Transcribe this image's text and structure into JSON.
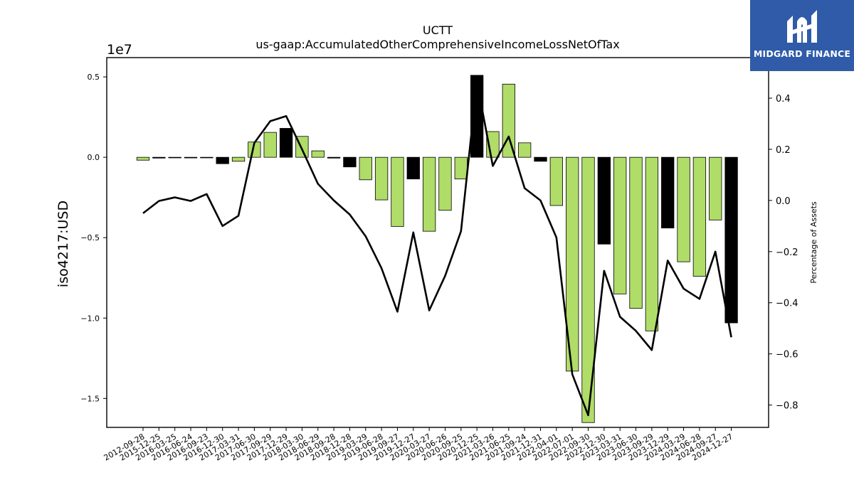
{
  "brand": {
    "name": "MIDGARD FINANCE",
    "color": "#2f5ba8"
  },
  "chart_data": {
    "type": "bar",
    "title": "UCTT",
    "subtitle": "us-gaap:AccumulatedOtherComprehensiveIncomeLossNetOfTax",
    "ylabel": "iso4217:USD",
    "y_multiplier_label": "1e7",
    "y2label": "Percentage of Assets",
    "ylim": [
      -1.68,
      0.62
    ],
    "y2lim": [
      -0.8874,
      0.5586
    ],
    "yticks": [
      0.5,
      0.0,
      -0.5,
      -1.0,
      -1.5
    ],
    "y2ticks": [
      0.4,
      0.2,
      0.0,
      -0.2,
      -0.4,
      -0.6,
      -0.8
    ],
    "colors": {
      "positive_change": "#b0dc68",
      "negative_change": "#000000",
      "line": "#000000"
    },
    "categories": [
      "2012-09-28",
      "2015-12-25",
      "2016-03-25",
      "2016-06-24",
      "2016-09-23",
      "2016-12-30",
      "2017-03-31",
      "2017-06-30",
      "2017-09-29",
      "2017-12-29",
      "2018-03-30",
      "2018-06-29",
      "2018-09-28",
      "2018-12-28",
      "2019-03-29",
      "2019-06-28",
      "2019-09-27",
      "2019-12-27",
      "2020-03-27",
      "2020-06-26",
      "2020-09-25",
      "2020-12-25",
      "2021-03-26",
      "2021-06-25",
      "2021-09-24",
      "2021-12-31",
      "2022-04-01",
      "2022-07-01",
      "2022-09-30",
      "2022-12-30",
      "2023-03-31",
      "2023-06-30",
      "2023-09-29",
      "2023-12-29",
      "2024-03-29",
      "2024-06-28",
      "2024-09-27",
      "2024-12-27"
    ],
    "series": [
      {
        "values": [
          -0.018,
          -0.005,
          -0.002,
          -0.004,
          -0.003,
          -0.04,
          -0.025,
          0.095,
          0.155,
          0.18,
          0.13,
          0.04,
          -0.005,
          -0.06,
          -0.14,
          -0.265,
          -0.43,
          -0.135,
          -0.46,
          -0.33,
          -0.135,
          0.51,
          0.16,
          0.455,
          0.09,
          -0.025,
          -0.3,
          -1.33,
          -1.65,
          -0.54,
          -0.85,
          -0.94,
          -1.08,
          -0.44,
          -0.65,
          -0.74,
          -0.39,
          -1.03
        ],
        "bar_colors": [
          "green",
          "black",
          "green",
          "black",
          "green",
          "black",
          "green",
          "green",
          "green",
          "black",
          "green",
          "green",
          "black",
          "black",
          "green",
          "green",
          "green",
          "black",
          "green",
          "green",
          "green",
          "black",
          "green",
          "green",
          "green",
          "black",
          "green",
          "green",
          "green",
          "black",
          "green",
          "green",
          "green",
          "black",
          "green",
          "green",
          "green",
          "black"
        ]
      },
      {
        "axis": "right",
        "values": [
          -0.05,
          -0.002,
          0.012,
          -0.002,
          0.025,
          -0.1,
          -0.06,
          0.225,
          0.31,
          0.33,
          0.2,
          0.065,
          0.0,
          -0.055,
          -0.14,
          -0.265,
          -0.435,
          -0.125,
          -0.43,
          -0.295,
          -0.12,
          0.465,
          0.135,
          0.25,
          0.048,
          0.0,
          -0.145,
          -0.68,
          -0.84,
          -0.275,
          -0.455,
          -0.51,
          -0.585,
          -0.235,
          -0.345,
          -0.385,
          -0.2,
          -0.535
        ]
      }
    ],
    "grid": false
  }
}
